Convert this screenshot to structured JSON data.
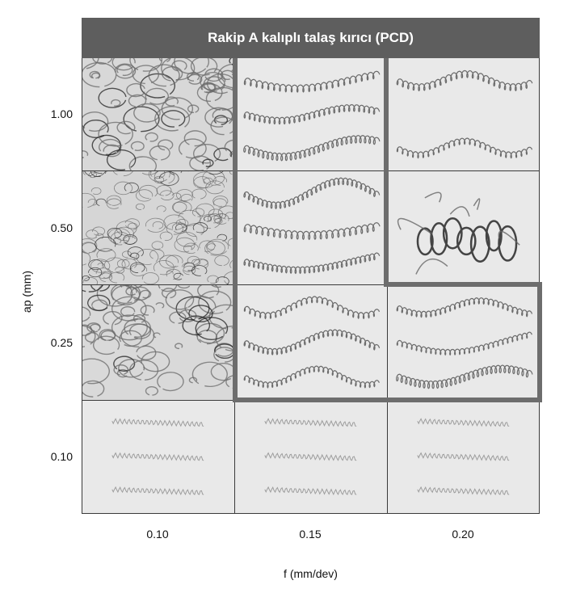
{
  "title": "Rakip A kalıplı talaş kırıcı (PCD)",
  "y_axis": {
    "label": "ap (mm)",
    "ticks": [
      "1.00",
      "0.50",
      "0.25",
      "0.10"
    ]
  },
  "x_axis": {
    "label": "f (mm/dev)",
    "ticks": [
      "0.10",
      "0.15",
      "0.20"
    ]
  },
  "grid": [
    [
      {
        "ap": "1.00",
        "f": "0.10",
        "chip": "tangled-long"
      },
      {
        "ap": "1.00",
        "f": "0.15",
        "chip": "helical-long"
      },
      {
        "ap": "1.00",
        "f": "0.20",
        "chip": "helical-long"
      }
    ],
    [
      {
        "ap": "0.50",
        "f": "0.10",
        "chip": "tangled-dense"
      },
      {
        "ap": "0.50",
        "f": "0.15",
        "chip": "helical-long"
      },
      {
        "ap": "0.50",
        "f": "0.20",
        "chip": "tangled-coil"
      }
    ],
    [
      {
        "ap": "0.25",
        "f": "0.10",
        "chip": "tangled-long"
      },
      {
        "ap": "0.25",
        "f": "0.15",
        "chip": "helical-medium"
      },
      {
        "ap": "0.25",
        "f": "0.20",
        "chip": "helical-medium"
      }
    ],
    [
      {
        "ap": "0.10",
        "f": "0.10",
        "chip": "helical-short"
      },
      {
        "ap": "0.10",
        "f": "0.15",
        "chip": "helical-short"
      },
      {
        "ap": "0.10",
        "f": "0.20",
        "chip": "helical-short"
      }
    ]
  ],
  "colors": {
    "header_bg": "#5e5e5e",
    "frame": "#6d6d6d",
    "cell_bg": "#e9e9e9",
    "chip": "#555555"
  }
}
